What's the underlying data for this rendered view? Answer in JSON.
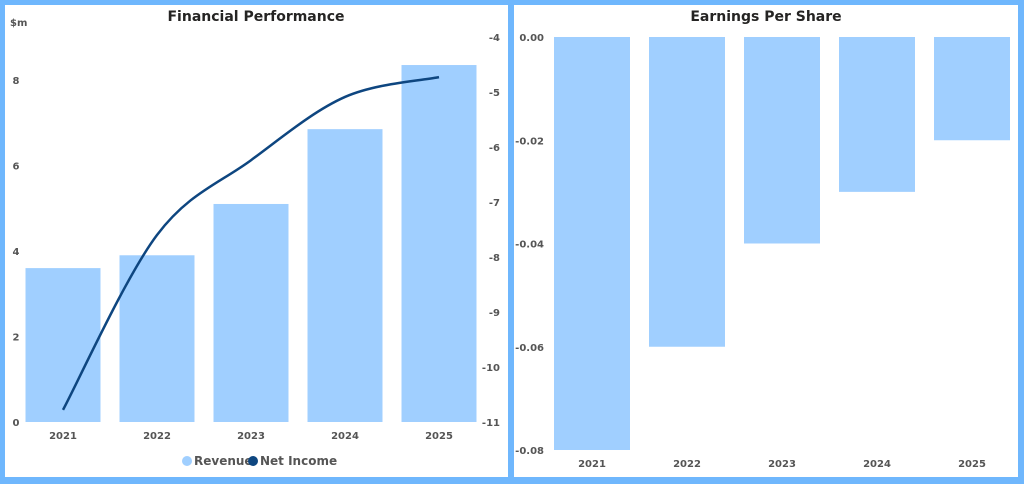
{
  "colors": {
    "revenue": "#a0cfff",
    "net_income": "#0e4680",
    "eps": "#a0cfff",
    "frame": "#6fb7fd"
  },
  "chart_data": [
    {
      "type": "bar+line",
      "title": "Financial Performance",
      "ylabel": "$m",
      "categories": [
        "2021",
        "2022",
        "2023",
        "2024",
        "2025"
      ],
      "series": [
        {
          "name": "Revenue",
          "type": "bar",
          "axis": "left",
          "values": [
            3.6,
            3.9,
            5.1,
            6.85,
            8.35
          ]
        },
        {
          "name": "Net Income",
          "type": "line",
          "axis": "right",
          "values": [
            -10.78,
            -7.6,
            -6.24,
            -5.09,
            -4.73
          ]
        }
      ],
      "ylim": [
        0,
        8.9
      ],
      "yticks": [
        0,
        2,
        4,
        6,
        8
      ],
      "y2lim": [
        -11,
        -3.95
      ],
      "y2ticks": [
        -4,
        -5,
        -6,
        -7,
        -8,
        -9,
        -10,
        -11
      ],
      "legend": "bottom",
      "grid": false
    },
    {
      "type": "bar",
      "title": "Earnings Per Share",
      "categories": [
        "2021",
        "2022",
        "2023",
        "2024",
        "2025"
      ],
      "values": [
        -0.08,
        -0.06,
        -0.04,
        -0.03,
        -0.02
      ],
      "ylim": [
        -0.08,
        0
      ],
      "yticks": [
        "0.00",
        "-0.02",
        "-0.04",
        "-0.06",
        "-0.08"
      ],
      "grid": false
    }
  ]
}
